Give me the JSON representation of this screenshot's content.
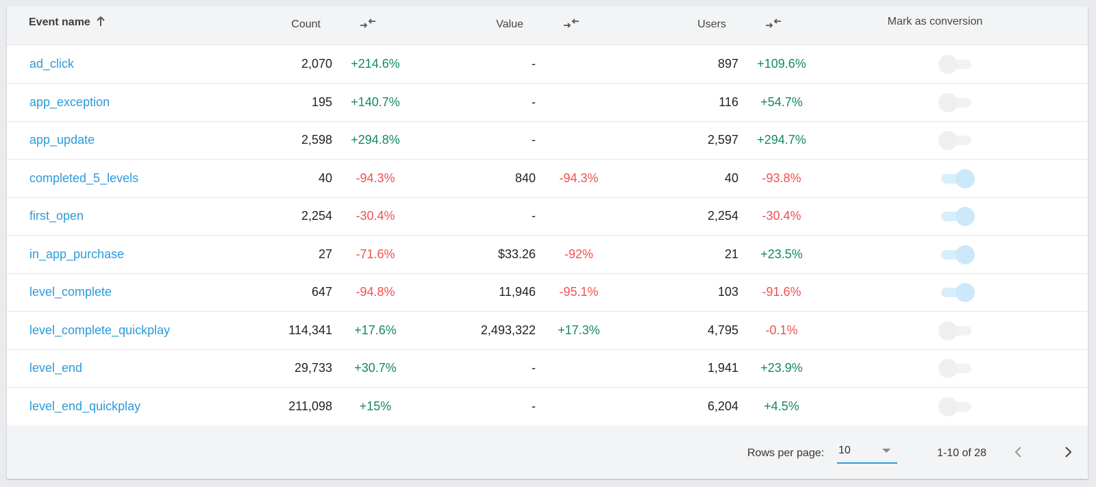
{
  "table": {
    "headers": {
      "event_name": "Event name",
      "count": "Count",
      "value": "Value",
      "users": "Users",
      "mark_as_conversion": "Mark as conversion"
    },
    "rows": [
      {
        "name": "ad_click",
        "count": "2,070",
        "count_change": "+214.6%",
        "value": "-",
        "value_change": "",
        "users": "897",
        "users_change": "+109.6%",
        "conversion": false
      },
      {
        "name": "app_exception",
        "count": "195",
        "count_change": "+140.7%",
        "value": "-",
        "value_change": "",
        "users": "116",
        "users_change": "+54.7%",
        "conversion": false
      },
      {
        "name": "app_update",
        "count": "2,598",
        "count_change": "+294.8%",
        "value": "-",
        "value_change": "",
        "users": "2,597",
        "users_change": "+294.7%",
        "conversion": false
      },
      {
        "name": "completed_5_levels",
        "count": "40",
        "count_change": "-94.3%",
        "value": "840",
        "value_change": "-94.3%",
        "users": "40",
        "users_change": "-93.8%",
        "conversion": true
      },
      {
        "name": "first_open",
        "count": "2,254",
        "count_change": "-30.4%",
        "value": "-",
        "value_change": "",
        "users": "2,254",
        "users_change": "-30.4%",
        "conversion": true
      },
      {
        "name": "in_app_purchase",
        "count": "27",
        "count_change": "-71.6%",
        "value": "$33.26",
        "value_change": "-92%",
        "users": "21",
        "users_change": "+23.5%",
        "conversion": true
      },
      {
        "name": "level_complete",
        "count": "647",
        "count_change": "-94.8%",
        "value": "11,946",
        "value_change": "-95.1%",
        "users": "103",
        "users_change": "-91.6%",
        "conversion": true
      },
      {
        "name": "level_complete_quickplay",
        "count": "114,341",
        "count_change": "+17.6%",
        "value": "2,493,322",
        "value_change": "+17.3%",
        "users": "4,795",
        "users_change": "-0.1%",
        "conversion": false
      },
      {
        "name": "level_end",
        "count": "29,733",
        "count_change": "+30.7%",
        "value": "-",
        "value_change": "",
        "users": "1,941",
        "users_change": "+23.9%",
        "conversion": false
      },
      {
        "name": "level_end_quickplay",
        "count": "211,098",
        "count_change": "+15%",
        "value": "-",
        "value_change": "",
        "users": "6,204",
        "users_change": "+4.5%",
        "conversion": false
      }
    ]
  },
  "pagination": {
    "rows_per_page_label": "Rows per page:",
    "rows_per_page_value": "10",
    "range_text": "1-10 of 28"
  },
  "icons": {
    "sort": "arrow-up-icon",
    "compare": "compare-arrows-icon",
    "prev": "chevron-left-icon",
    "next": "chevron-right-icon"
  },
  "colors": {
    "link": "#2c9ad8",
    "positive": "#128a5e",
    "negative": "#ef5050",
    "toggle_on": "#cce8fb"
  }
}
